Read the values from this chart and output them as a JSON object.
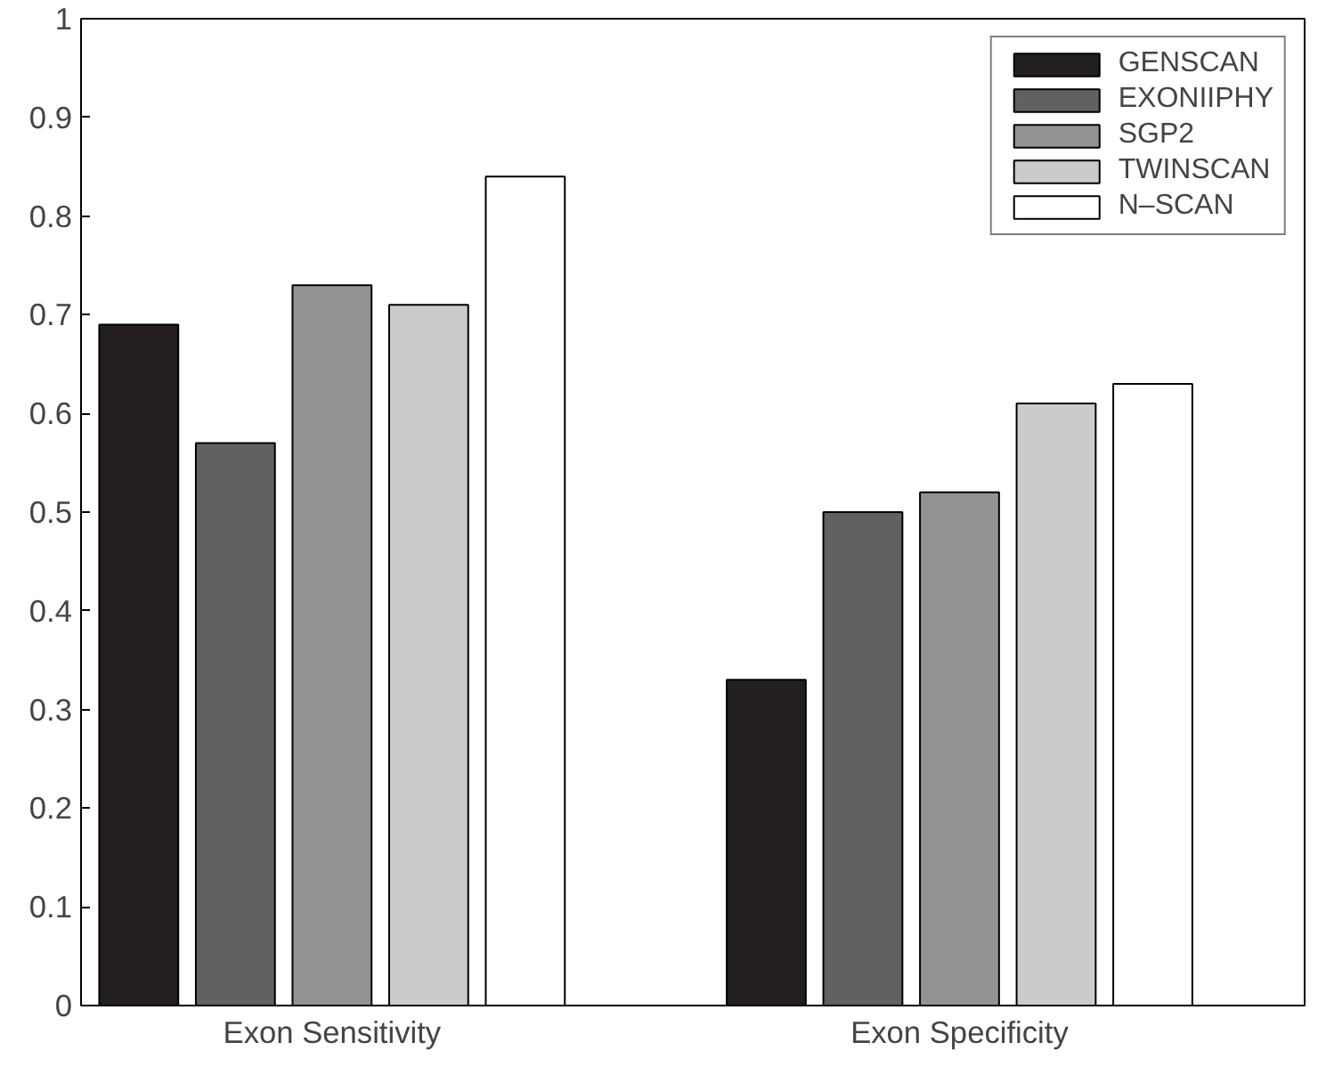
{
  "chart_data": {
    "type": "bar",
    "categories": [
      "Exon Sensitivity",
      "Exon Specificity"
    ],
    "series": [
      {
        "name": "GENSCAN",
        "color": "#231f20",
        "values": [
          0.69,
          0.33
        ]
      },
      {
        "name": "EXONIIPHY",
        "color": "#616161",
        "values": [
          0.57,
          0.5
        ]
      },
      {
        "name": "SGP2",
        "color": "#939393",
        "values": [
          0.73,
          0.52
        ]
      },
      {
        "name": "TWINSCAN",
        "color": "#cbcbcb",
        "values": [
          0.71,
          0.61
        ]
      },
      {
        "name": "N–SCAN",
        "color": "#ffffff",
        "values": [
          0.84,
          0.63
        ]
      }
    ],
    "ylim": [
      0,
      1
    ],
    "yticks": [
      0,
      0.1,
      0.2,
      0.3,
      0.4,
      0.5,
      0.6,
      0.7,
      0.8,
      0.9,
      1
    ],
    "grid": false,
    "legend": "top right"
  }
}
